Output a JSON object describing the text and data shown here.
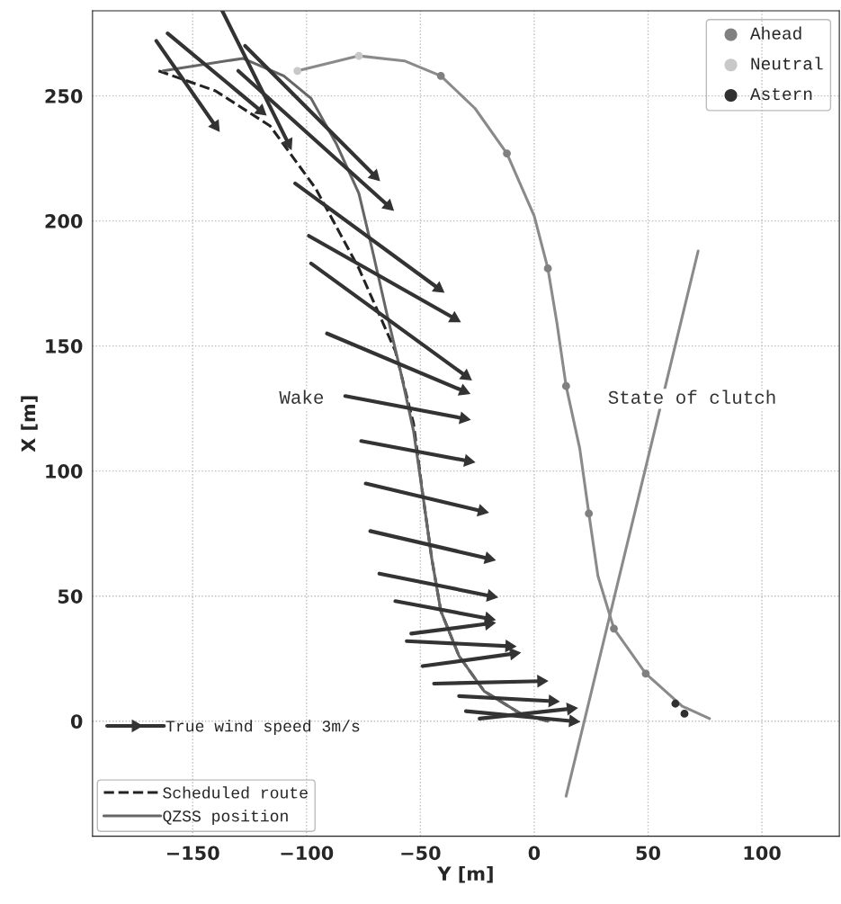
{
  "chart_data": {
    "type": "line",
    "xlabel": "Y [m]",
    "ylabel": "X [m]",
    "xlim": [
      -194,
      134
    ],
    "ylim": [
      -46,
      284
    ],
    "xticks": [
      -150,
      -100,
      -50,
      0,
      50,
      100
    ],
    "yticks": [
      0,
      50,
      100,
      150,
      200,
      250
    ],
    "grid": true,
    "legend": "bottom left",
    "annotations": [
      "Wake",
      "State of clutch"
    ],
    "series": [
      {
        "name": "True wind speed 3m/s",
        "color": "#333333",
        "marker": "triangle",
        "x": [
          -166,
          -140
        ],
        "values": [
          272,
          238
        ]
      },
      {
        "color": "#333333",
        "marker": "triangle",
        "x": [
          -161,
          -120
        ],
        "values": [
          275,
          244
        ]
      },
      {
        "color": "#333333",
        "marker": "triangle",
        "x": [
          -137,
          -108
        ],
        "values": [
          284,
          231
        ]
      },
      {
        "color": "#333333",
        "marker": "triangle",
        "x": [
          -127,
          -70
        ],
        "values": [
          270,
          218
        ]
      },
      {
        "color": "#333333",
        "marker": "triangle",
        "x": [
          -130,
          -64
        ],
        "values": [
          260,
          206
        ]
      },
      {
        "color": "#333333",
        "marker": "triangle",
        "x": [
          -105,
          -42
        ],
        "values": [
          215,
          173
        ]
      },
      {
        "color": "#333333",
        "marker": "triangle",
        "x": [
          -99,
          -35
        ],
        "values": [
          194,
          161
        ]
      },
      {
        "color": "#333333",
        "marker": "triangle",
        "x": [
          -98,
          -30
        ],
        "values": [
          183,
          138
        ]
      },
      {
        "color": "#333333",
        "marker": "triangle",
        "x": [
          -91,
          -31
        ],
        "values": [
          155,
          132
        ]
      },
      {
        "color": "#333333",
        "marker": "triangle",
        "x": [
          -83,
          -31
        ],
        "values": [
          130,
          121
        ]
      },
      {
        "color": "#333333",
        "marker": "triangle",
        "x": [
          -76,
          -29
        ],
        "values": [
          112,
          104
        ]
      },
      {
        "color": "#333333",
        "marker": "triangle",
        "x": [
          -74,
          -23
        ],
        "values": [
          95,
          84
        ]
      },
      {
        "color": "#333333",
        "marker": "triangle",
        "x": [
          -72,
          -20
        ],
        "values": [
          76,
          65
        ]
      },
      {
        "color": "#333333",
        "marker": "triangle",
        "x": [
          -68,
          -19
        ],
        "values": [
          59,
          50
        ]
      },
      {
        "color": "#333333",
        "marker": "triangle",
        "x": [
          -61,
          -20
        ],
        "values": [
          48,
          41
        ]
      },
      {
        "color": "#333333",
        "marker": "triangle",
        "x": [
          -54,
          -20
        ],
        "values": [
          35,
          39
        ]
      },
      {
        "color": "#333333",
        "marker": "triangle",
        "x": [
          -56,
          -11
        ],
        "values": [
          32,
          30
        ]
      },
      {
        "color": "#333333",
        "marker": "triangle",
        "x": [
          -49,
          -9
        ],
        "values": [
          22,
          27
        ]
      },
      {
        "color": "#333333",
        "marker": "triangle",
        "x": [
          -44,
          3
        ],
        "values": [
          15,
          16
        ]
      },
      {
        "color": "#333333",
        "marker": "triangle",
        "x": [
          -33,
          8
        ],
        "values": [
          10,
          8
        ]
      },
      {
        "color": "#333333",
        "marker": "triangle",
        "x": [
          -24,
          16
        ],
        "values": [
          1,
          5
        ]
      },
      {
        "color": "#333333",
        "marker": "triangle",
        "x": [
          -30,
          17
        ],
        "values": [
          4,
          0
        ]
      },
      {
        "name": "Scheduled route",
        "color": "#222222",
        "line_style": "dashed",
        "x": [
          -165,
          -140,
          -116,
          -96,
          -77,
          -61,
          -53,
          -49,
          -45,
          -41,
          -33,
          -22,
          -6,
          6
        ],
        "values": [
          260,
          252,
          238,
          213,
          181,
          148,
          119,
          91,
          65,
          44,
          26,
          12,
          3,
          0
        ]
      },
      {
        "name": "QZSS position",
        "color": "#666666",
        "line_style": "solid",
        "x": [
          -163,
          -128,
          -110,
          -98,
          -87,
          -77,
          -71,
          -65,
          -59,
          -53,
          -49,
          -45,
          -41,
          -33,
          -22,
          -6,
          6
        ],
        "values": [
          260,
          265,
          258,
          249,
          231,
          211,
          188,
          164,
          141,
          116,
          91,
          65,
          44,
          26,
          12,
          3,
          0
        ]
      },
      {
        "color": "#8a8a8a",
        "line_style": "solid",
        "x": [
          -104,
          -77,
          -57,
          -41,
          -26,
          -12,
          0,
          6,
          10,
          14,
          20,
          24,
          28,
          35,
          49,
          65,
          77
        ],
        "values": [
          260,
          266,
          264,
          258,
          245,
          227,
          202,
          181,
          159,
          134,
          109,
          83,
          58,
          37,
          19,
          6,
          1
        ]
      },
      {
        "color": "#8a8a8a",
        "line_style": "solid",
        "x": [
          14,
          72
        ],
        "values": [
          -30,
          188
        ]
      },
      {
        "type": "scatter",
        "name": "Ahead",
        "color": "#808080",
        "marker": "circle",
        "x": [
          -41,
          -12,
          6,
          14,
          24,
          35,
          49
        ],
        "values": [
          258,
          227,
          181,
          134,
          83,
          37,
          19
        ]
      },
      {
        "type": "scatter",
        "name": "Neutral",
        "color": "#c8c8c8",
        "marker": "circle",
        "x": [
          -104,
          -77
        ],
        "values": [
          260,
          266
        ]
      },
      {
        "type": "scatter",
        "name": "Astern",
        "color": "#303030",
        "marker": "circle",
        "x": [
          62,
          66
        ],
        "values": [
          7,
          3
        ]
      }
    ]
  }
}
